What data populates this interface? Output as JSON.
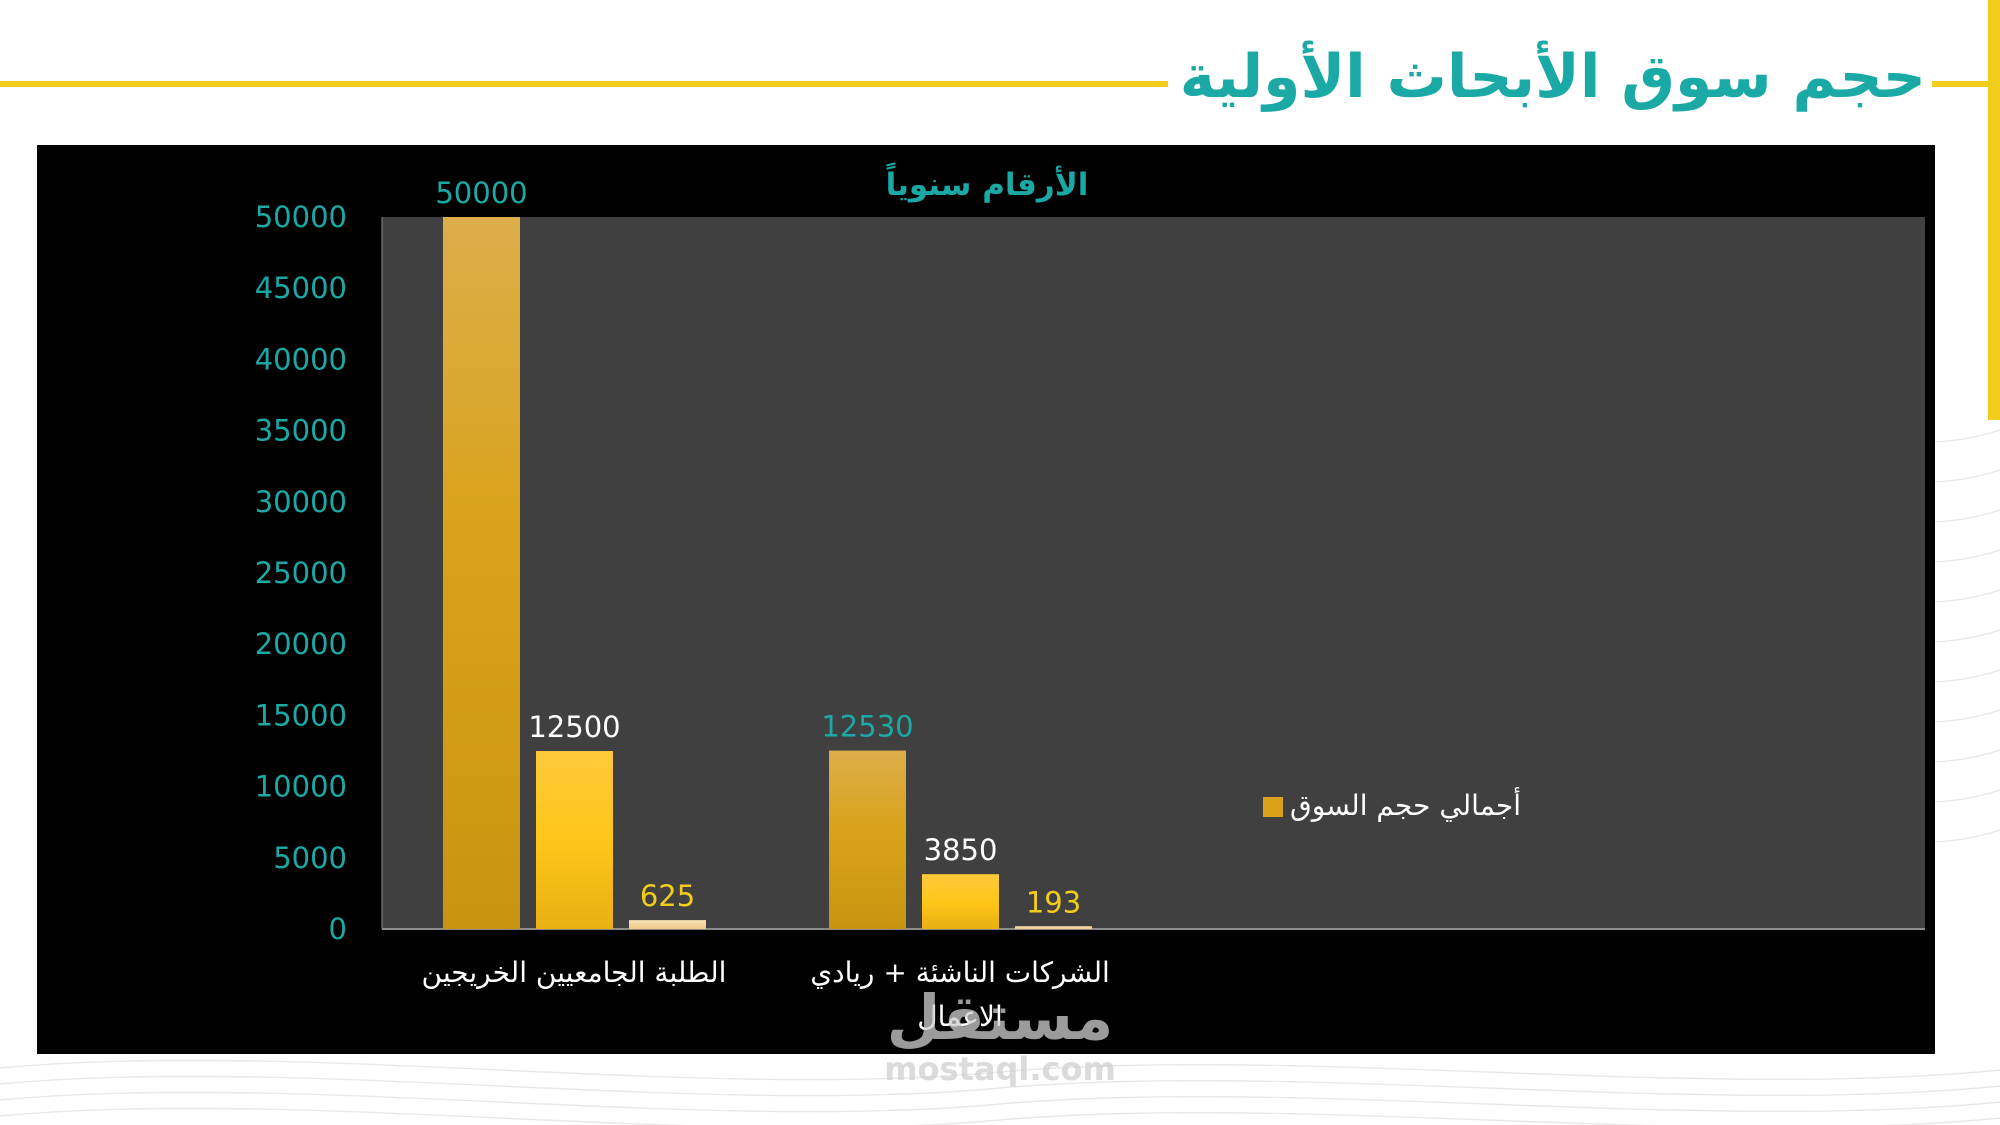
{
  "slide": {
    "title": "حجم سوق الأبحاث الأولية"
  },
  "watermark": {
    "logo": "مستقل",
    "url": "mostaql.com"
  },
  "colors": {
    "accent_yellow": "#f2cd1a",
    "title_teal": "#1aa9a5",
    "chart_background": "#000000",
    "plot_background": "#404040",
    "bar_dark_gold": "#d9a21a",
    "bar_gold": "#ffc61a",
    "bar_pale_gold": "#f5d9a0",
    "axis_label_teal": "#1aa9a5"
  },
  "chart_data": {
    "type": "bar",
    "title": "الأرقام سنوياً",
    "categories": [
      "الطلبة الجامعيين الخريجين",
      "الشركات الناشئة + ريادي الاعمال"
    ],
    "series": [
      {
        "name": "أجمالي حجم السوق",
        "values": [
          50000,
          12530
        ],
        "color": "#d9a21a",
        "label_color": "#1aa9a5"
      },
      {
        "values": [
          12500,
          3850
        ],
        "color": "#ffc61a",
        "label_color": "#ffffff"
      },
      {
        "values": [
          625,
          193
        ],
        "color": "#f5d9a0",
        "label_color": "#f2cd1a"
      }
    ],
    "ylim": [
      0,
      50000
    ],
    "yticks": [
      0,
      5000,
      10000,
      15000,
      20000,
      25000,
      30000,
      35000,
      40000,
      45000,
      50000
    ],
    "xlabel": "",
    "ylabel": "",
    "legend": "right",
    "grid": false
  }
}
